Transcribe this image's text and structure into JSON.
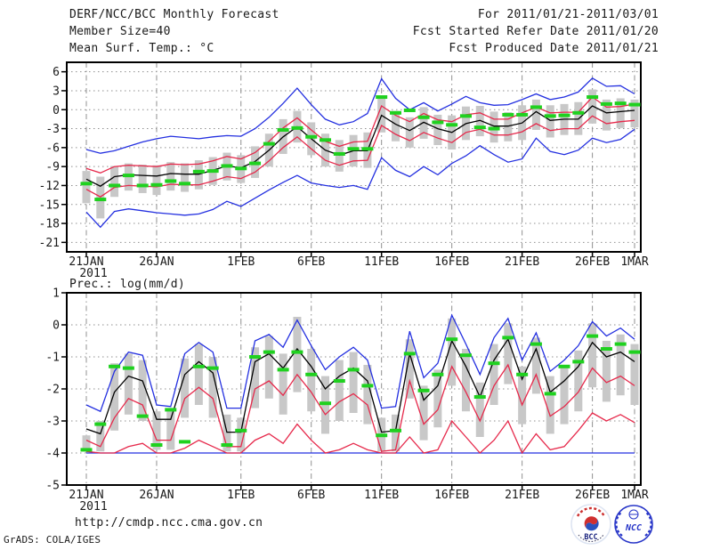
{
  "header": {
    "title": "DERF/NCC/BCC Monthly Forecast",
    "member_size": "Member Size=40",
    "forecast_period": "For 2011/01/21-2011/03/01",
    "refer_date": "Fcst Started Refer Date 2011/01/20",
    "produced_date": "Fcst Produced Date 2011/01/21"
  },
  "footer": {
    "url": "http://cmdp.ncc.cma.gov.cn",
    "credit": "GrADS: COLA/IGES",
    "logos": [
      {
        "name": "Beijing Climate Center",
        "caption": "BCC"
      },
      {
        "name": "National Climate Center",
        "caption": "NCC"
      }
    ]
  },
  "colors": {
    "line_blue": "#2430e0",
    "line_red": "#e6294b",
    "line_black": "#000000",
    "obs_green": "#1fd11f",
    "spread_gray": "#c8c8c8",
    "frame": "#000000",
    "grid": "#909090",
    "text": "#1a1a1a",
    "logo_red": "#cc2f2f",
    "logo_blue": "#2836c8",
    "logo_navy": "#1a237e"
  },
  "chart_data": [
    {
      "type": "line",
      "title": "Mean Surf. Temp.: °C",
      "xlabel": "",
      "ylabel": "",
      "n_points": 40,
      "x_unit": "day (21JAN2011 - 1MAR2011)",
      "grid": true,
      "legend": "none",
      "ylim": [
        -22.5,
        7.5
      ],
      "y_ticks": [
        6,
        3,
        0,
        -3,
        -6,
        -9,
        -12,
        -15,
        -18,
        -21
      ],
      "x_ticks": [
        {
          "day": 0,
          "label": "21JAN",
          "sublabel": "2011"
        },
        {
          "day": 5,
          "label": "26JAN"
        },
        {
          "day": 11,
          "label": "1FEB"
        },
        {
          "day": 16,
          "label": "6FEB"
        },
        {
          "day": 21,
          "label": "11FEB"
        },
        {
          "day": 26,
          "label": "16FEB"
        },
        {
          "day": 31,
          "label": "21FEB"
        },
        {
          "day": 36,
          "label": "26FEB"
        },
        {
          "day": 39,
          "label": "1MAR"
        }
      ],
      "series": [
        {
          "id": "spread-bar",
          "name": "ensemble spread bar",
          "style": "bar",
          "color": "#c8c8c8",
          "high": [
            -9.7,
            -10.6,
            -8.9,
            -8.5,
            -8.7,
            -8.8,
            -8.3,
            -8.5,
            -8.0,
            -7.5,
            -6.8,
            -7.2,
            -5.8,
            -3.8,
            -1.5,
            -0.2,
            -2.0,
            -3.8,
            -4.8,
            -4.0,
            -3.6,
            1.8,
            -0.2,
            -1.2,
            0.4,
            -0.8,
            -0.9,
            0.5,
            0.6,
            -0.3,
            -0.4,
            0.7,
            1.6,
            0.7,
            0.9,
            1.2,
            3.2,
            1.6,
            1.8,
            1.6
          ],
          "low": [
            -14.8,
            -17.2,
            -13.8,
            -12.8,
            -13.2,
            -13.5,
            -12.8,
            -13.0,
            -12.6,
            -11.9,
            -11.2,
            -11.6,
            -10.8,
            -9.0,
            -7.0,
            -5.2,
            -7.2,
            -9.0,
            -9.8,
            -9.0,
            -9.2,
            -3.6,
            -5.0,
            -6.0,
            -4.6,
            -5.6,
            -6.3,
            -4.8,
            -4.2,
            -5.2,
            -5.0,
            -4.8,
            -3.2,
            -4.4,
            -4.0,
            -4.0,
            -2.2,
            -3.3,
            -2.9,
            -2.8
          ]
        },
        {
          "id": "min",
          "name": "ensemble minimum",
          "style": "line",
          "color": "#2430e0",
          "values": [
            -16.2,
            -18.6,
            -16.1,
            -15.7,
            -16.0,
            -16.3,
            -16.5,
            -16.7,
            -16.5,
            -15.8,
            -14.5,
            -15.3,
            -14.0,
            -12.7,
            -11.5,
            -10.4,
            -11.6,
            -12.0,
            -12.3,
            -12.0,
            -12.6,
            -7.6,
            -9.6,
            -10.6,
            -9.0,
            -10.3,
            -8.5,
            -7.3,
            -5.7,
            -7.1,
            -8.3,
            -7.8,
            -4.5,
            -6.6,
            -7.1,
            -6.4,
            -4.5,
            -5.2,
            -4.7,
            -3.1
          ]
        },
        {
          "id": "max",
          "name": "ensemble maximum",
          "style": "line",
          "color": "#2430e0",
          "values": [
            -6.3,
            -6.9,
            -6.5,
            -5.8,
            -5.1,
            -4.6,
            -4.2,
            -4.4,
            -4.6,
            -4.3,
            -4.1,
            -4.2,
            -3.0,
            -1.2,
            1.0,
            3.4,
            0.8,
            -1.5,
            -2.4,
            -1.9,
            -0.6,
            4.9,
            1.8,
            0.0,
            1.1,
            -0.2,
            0.9,
            2.1,
            1.1,
            0.7,
            0.8,
            1.6,
            2.5,
            1.6,
            2.0,
            2.8,
            5.0,
            3.7,
            3.8,
            2.5
          ]
        },
        {
          "id": "lower",
          "name": "lower quartile",
          "style": "line",
          "color": "#e6294b",
          "values": [
            -12.6,
            -13.8,
            -12.3,
            -12.0,
            -12.1,
            -12.2,
            -11.8,
            -11.9,
            -11.9,
            -11.3,
            -10.6,
            -10.9,
            -9.9,
            -8.1,
            -6.0,
            -4.3,
            -6.2,
            -8.0,
            -8.8,
            -8.1,
            -8.0,
            -2.5,
            -3.9,
            -4.9,
            -3.6,
            -4.5,
            -5.2,
            -3.6,
            -3.1,
            -4.0,
            -4.0,
            -3.5,
            -2.2,
            -3.3,
            -3.0,
            -3.0,
            -1.0,
            -2.2,
            -1.9,
            -1.7
          ]
        },
        {
          "id": "upper",
          "name": "upper quartile",
          "style": "line",
          "color": "#e6294b",
          "values": [
            -9.3,
            -10.0,
            -9.0,
            -8.8,
            -8.9,
            -9.0,
            -8.6,
            -8.7,
            -8.6,
            -8.1,
            -7.4,
            -7.8,
            -6.8,
            -5.0,
            -2.9,
            -1.3,
            -3.2,
            -5.0,
            -5.8,
            -5.1,
            -5.0,
            0.6,
            -0.9,
            -1.9,
            -0.6,
            -1.6,
            -1.9,
            -0.8,
            -0.5,
            -1.5,
            -1.5,
            -0.5,
            0.4,
            -0.5,
            -0.4,
            -0.4,
            2.0,
            0.4,
            0.5,
            0.9
          ]
        },
        {
          "id": "mean",
          "name": "ensemble mean",
          "style": "line",
          "color": "#000000",
          "values": [
            -11.0,
            -12.1,
            -10.6,
            -10.3,
            -10.4,
            -10.5,
            -10.1,
            -10.2,
            -10.2,
            -9.6,
            -8.9,
            -9.2,
            -8.2,
            -6.4,
            -4.3,
            -2.7,
            -4.6,
            -6.4,
            -7.2,
            -6.5,
            -6.5,
            -0.9,
            -2.3,
            -3.3,
            -2.0,
            -3.0,
            -3.6,
            -2.2,
            -1.7,
            -2.6,
            -2.6,
            -2.1,
            -0.3,
            -1.7,
            -1.5,
            -1.5,
            0.6,
            -0.5,
            -0.3,
            -0.1
          ]
        },
        {
          "id": "obs",
          "name": "observation marks",
          "style": "dash",
          "color": "#1fd11f",
          "values": [
            -11.7,
            -14.2,
            -12.0,
            -10.4,
            -12.0,
            -11.9,
            -11.3,
            -11.7,
            -9.8,
            -9.7,
            -8.9,
            -9.3,
            -8.5,
            -5.4,
            -3.2,
            -2.9,
            -4.3,
            -4.8,
            -7.0,
            -6.2,
            -6.2,
            2.0,
            -0.5,
            -0.1,
            -1.2,
            -2.0,
            -2.4,
            -1.0,
            -2.8,
            -3.0,
            -0.8,
            -0.8,
            0.4,
            -1.0,
            -0.9,
            -0.5,
            2.0,
            0.9,
            1.0,
            0.8
          ]
        }
      ]
    },
    {
      "type": "line",
      "title": "Prec.: log(mm/d)",
      "xlabel": "",
      "ylabel": "",
      "n_points": 40,
      "x_unit": "day (21JAN2011 - 1MAR2011)",
      "grid": true,
      "legend": "none",
      "ylim": [
        -5,
        1
      ],
      "y_ticks": [
        1,
        0,
        -1,
        -2,
        -3,
        -4,
        -5
      ],
      "x_ticks": [
        {
          "day": 0,
          "label": "21JAN",
          "sublabel": "2011"
        },
        {
          "day": 5,
          "label": "26JAN"
        },
        {
          "day": 11,
          "label": "1FEB"
        },
        {
          "day": 16,
          "label": "6FEB"
        },
        {
          "day": 21,
          "label": "11FEB"
        },
        {
          "day": 26,
          "label": "16FEB"
        },
        {
          "day": 31,
          "label": "21FEB"
        },
        {
          "day": 36,
          "label": "26FEB"
        },
        {
          "day": 39,
          "label": "1MAR"
        }
      ],
      "series": [
        {
          "id": "spread-bar",
          "name": "ensemble spread bar",
          "style": "bar",
          "color": "#c8c8c8",
          "high": [
            -3.45,
            -3.0,
            -1.2,
            -0.9,
            -1.1,
            -2.7,
            -2.7,
            -1.05,
            -0.6,
            -1.0,
            -2.8,
            -2.9,
            -0.7,
            -0.35,
            -0.9,
            0.25,
            -0.75,
            -1.6,
            -1.1,
            -0.85,
            -1.25,
            -2.9,
            -2.8,
            -0.45,
            -1.9,
            -1.4,
            0.2,
            -0.75,
            -1.8,
            -0.6,
            0.05,
            -1.3,
            -0.4,
            -1.6,
            -1.25,
            -0.8,
            0.05,
            -0.5,
            -0.3,
            -0.6
          ],
          "low": [
            -3.95,
            -3.95,
            -3.3,
            -2.8,
            -3.0,
            -3.9,
            -3.9,
            -2.9,
            -2.5,
            -2.9,
            -3.95,
            -3.95,
            -2.6,
            -2.3,
            -2.8,
            -2.1,
            -2.7,
            -3.4,
            -3.0,
            -2.75,
            -3.1,
            -3.95,
            -3.95,
            -2.3,
            -3.6,
            -3.2,
            -1.9,
            -2.7,
            -3.5,
            -2.5,
            -1.85,
            -3.1,
            -2.15,
            -3.4,
            -3.1,
            -2.7,
            -1.95,
            -2.4,
            -2.2,
            -2.5
          ]
        },
        {
          "id": "min",
          "name": "ensemble minimum (clipped)",
          "style": "line",
          "color": "#2430e0",
          "values": [
            -4,
            -4,
            -4,
            -4,
            -4,
            -4,
            -4,
            -4,
            -4,
            -4,
            -4,
            -4,
            -4,
            -4,
            -4,
            -4,
            -4,
            -4,
            -4,
            -4,
            -4,
            -4,
            -4,
            -4,
            -4,
            -4,
            -4,
            -4,
            -4,
            -4,
            -4,
            -4,
            -4,
            -4,
            -4,
            -4,
            -4,
            -4,
            -4,
            -4
          ]
        },
        {
          "id": "max",
          "name": "ensemble maximum",
          "style": "line",
          "color": "#2430e0",
          "values": [
            -2.5,
            -2.7,
            -1.45,
            -0.85,
            -0.95,
            -2.5,
            -2.55,
            -0.9,
            -0.55,
            -0.85,
            -2.6,
            -2.6,
            -0.5,
            -0.3,
            -0.7,
            0.15,
            -0.65,
            -1.4,
            -1.0,
            -0.7,
            -1.1,
            -2.6,
            -2.55,
            -0.2,
            -1.65,
            -1.2,
            0.3,
            -0.6,
            -1.55,
            -0.4,
            0.2,
            -1.1,
            -0.25,
            -1.45,
            -1.1,
            -0.65,
            0.1,
            -0.35,
            -0.1,
            -0.45
          ]
        },
        {
          "id": "low-red",
          "name": "lower bound",
          "style": "line",
          "color": "#e6294b",
          "values": [
            -3.95,
            -4.0,
            -4.0,
            -3.8,
            -3.7,
            -4.0,
            -4.0,
            -3.85,
            -3.6,
            -3.8,
            -4.0,
            -4.0,
            -3.6,
            -3.4,
            -3.7,
            -3.1,
            -3.6,
            -4.0,
            -3.9,
            -3.7,
            -3.9,
            -4.0,
            -4.0,
            -3.5,
            -4.0,
            -3.9,
            -3.0,
            -3.5,
            -4.0,
            -3.6,
            -3.0,
            -4.0,
            -3.4,
            -3.9,
            -3.8,
            -3.3,
            -2.75,
            -3.0,
            -2.8,
            -3.05
          ]
        },
        {
          "id": "lower",
          "name": "lower quartile",
          "style": "line",
          "color": "#e6294b",
          "values": [
            -3.6,
            -3.8,
            -2.9,
            -2.3,
            -2.5,
            -3.6,
            -3.6,
            -2.3,
            -1.95,
            -2.3,
            -3.8,
            -3.8,
            -2.0,
            -1.75,
            -2.2,
            -1.55,
            -2.1,
            -2.8,
            -2.4,
            -2.15,
            -2.5,
            -3.95,
            -3.9,
            -1.75,
            -3.1,
            -2.65,
            -1.3,
            -2.1,
            -3.0,
            -1.9,
            -1.25,
            -2.5,
            -1.55,
            -2.85,
            -2.55,
            -2.1,
            -1.35,
            -1.8,
            -1.6,
            -1.9
          ]
        },
        {
          "id": "mean",
          "name": "ensemble mean",
          "style": "line",
          "color": "#000000",
          "values": [
            -3.25,
            -3.4,
            -2.1,
            -1.6,
            -1.75,
            -2.95,
            -2.95,
            -1.55,
            -1.15,
            -1.5,
            -3.35,
            -3.35,
            -1.15,
            -0.9,
            -1.35,
            -0.75,
            -1.3,
            -2.0,
            -1.6,
            -1.35,
            -1.75,
            -3.35,
            -3.3,
            -0.9,
            -2.35,
            -1.9,
            -0.5,
            -1.3,
            -2.25,
            -1.1,
            -0.45,
            -1.7,
            -0.75,
            -2.1,
            -1.75,
            -1.3,
            -0.55,
            -1.0,
            -0.85,
            -1.15
          ]
        },
        {
          "id": "obs",
          "name": "observation marks",
          "style": "dash",
          "color": "#1fd11f",
          "values": [
            -3.9,
            -3.1,
            -1.3,
            -1.35,
            -2.85,
            -3.75,
            -2.65,
            -3.65,
            -1.3,
            -1.35,
            -3.75,
            -3.3,
            -1.0,
            -0.85,
            -1.4,
            -0.85,
            -1.55,
            -2.45,
            -1.75,
            -1.4,
            -1.9,
            -3.45,
            -3.3,
            -0.9,
            -2.05,
            -1.55,
            -0.45,
            -0.95,
            -2.25,
            -1.2,
            -0.4,
            -1.55,
            -0.6,
            -2.15,
            -1.3,
            -1.15,
            -0.35,
            -0.75,
            -0.6,
            -0.85
          ]
        }
      ]
    }
  ]
}
